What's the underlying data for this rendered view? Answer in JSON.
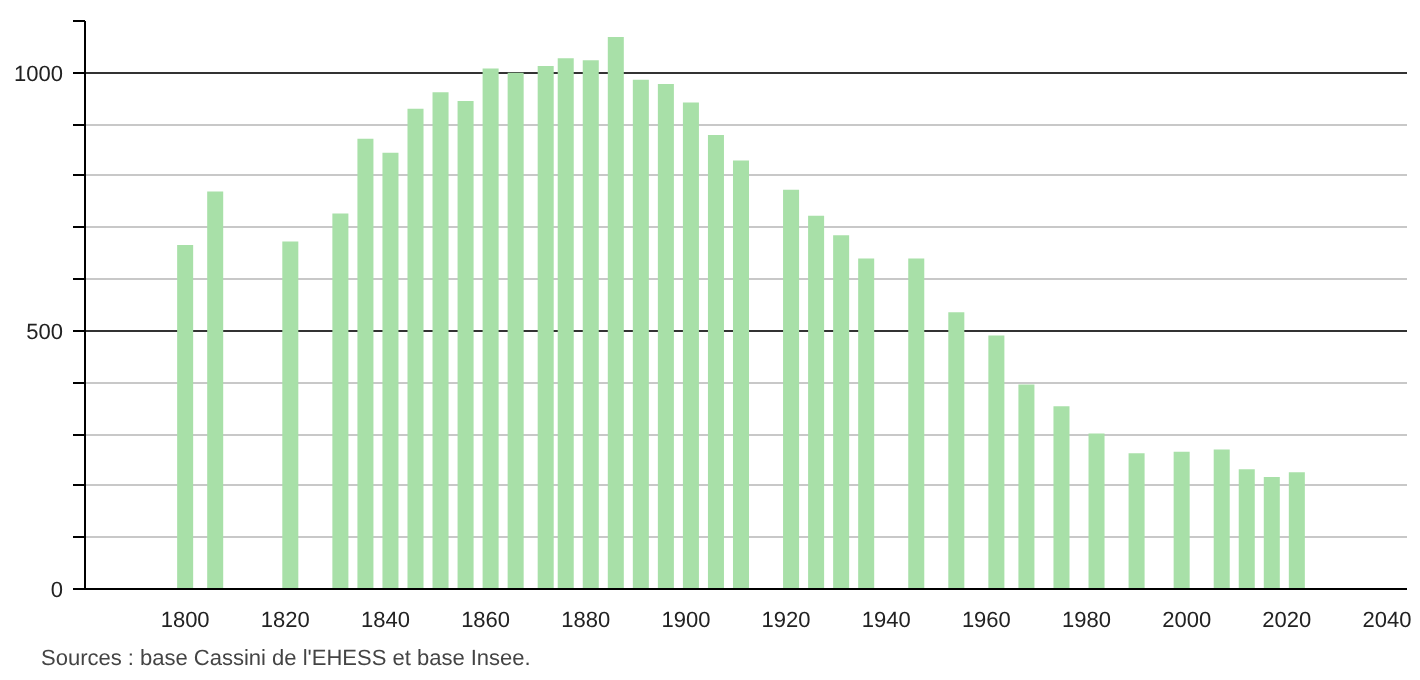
{
  "chart_data": {
    "type": "bar",
    "x": [
      1800,
      1806,
      1821,
      1831,
      1836,
      1841,
      1846,
      1851,
      1856,
      1861,
      1866,
      1872,
      1876,
      1881,
      1886,
      1891,
      1896,
      1901,
      1906,
      1911,
      1921,
      1926,
      1931,
      1936,
      1946,
      1954,
      1962,
      1968,
      1975,
      1982,
      1990,
      1999,
      2007,
      2012,
      2017,
      2022
    ],
    "values": [
      666,
      770,
      673,
      727,
      872,
      845,
      930,
      962,
      945,
      1008,
      1000,
      1013,
      1028,
      1024,
      1069,
      986,
      978,
      942,
      879,
      830,
      773,
      723,
      685,
      640,
      640,
      536,
      491,
      396,
      354,
      301,
      263,
      266,
      270,
      232,
      217,
      226
    ],
    "color": "#a8e0a8",
    "xlim": [
      1780,
      2044
    ],
    "xticks": [
      1800,
      1820,
      1840,
      1860,
      1880,
      1900,
      1920,
      1940,
      1960,
      1980,
      2000,
      2020,
      2040
    ],
    "ylim": [
      0,
      1100
    ],
    "yticks": [
      0,
      {
        "value": 100,
        "label": null
      },
      {
        "value": 200,
        "label": null
      },
      {
        "value": 300,
        "label": null
      },
      {
        "value": 400,
        "label": null
      },
      500,
      {
        "value": 600,
        "label": null
      },
      {
        "value": 700,
        "label": null
      },
      {
        "value": 800,
        "label": null
      },
      {
        "value": 900,
        "label": null
      },
      1000,
      {
        "value": 1100,
        "label": null
      }
    ],
    "grid": "y",
    "annotations": [
      "Sources : base Cassini de l'EHESS et base Insee."
    ]
  }
}
